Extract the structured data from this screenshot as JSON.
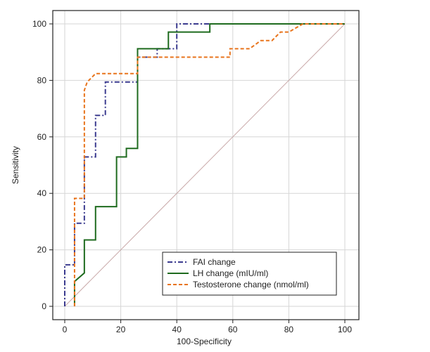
{
  "chart_data": {
    "type": "line",
    "title": "",
    "xlabel": "100-Specificity",
    "ylabel": "Sensitivity",
    "xlim": [
      0,
      100
    ],
    "ylim": [
      0,
      100
    ],
    "xticks": [
      "0",
      "20",
      "40",
      "60",
      "80",
      "100"
    ],
    "yticks": [
      "0",
      "20",
      "40",
      "60",
      "80",
      "100"
    ],
    "grid": true,
    "legend_position": "bottom-right",
    "diagonal_reference": true,
    "series": [
      {
        "name": "FAI change",
        "color": "#3b3b8f",
        "dash": "dash-dot",
        "x": [
          0,
          0,
          3.5,
          3.5,
          7,
          7,
          11,
          11,
          14.5,
          14.5,
          26,
          26,
          33,
          33,
          40,
          40,
          100
        ],
        "y": [
          0,
          14.7,
          14.7,
          29.4,
          29.4,
          52.9,
          52.9,
          67.6,
          67.6,
          79.4,
          79.4,
          88.2,
          88.2,
          91.2,
          91.2,
          100,
          100
        ]
      },
      {
        "name": "LH change (mIU/ml)",
        "color": "#1f6b1f",
        "dash": "solid",
        "x": [
          3.5,
          3.5,
          7,
          7,
          11,
          11,
          18.5,
          18.5,
          22,
          22,
          26,
          26,
          37,
          37,
          51.8,
          51.8,
          100
        ],
        "y": [
          0,
          8.8,
          11.8,
          23.5,
          23.5,
          35.3,
          35.3,
          52.9,
          52.9,
          55.9,
          55.9,
          91.2,
          91.2,
          97.1,
          97.1,
          100,
          100
        ]
      },
      {
        "name": "Testosterone change (nmol/ml)",
        "color": "#e8741c",
        "dash": "dashed",
        "x": [
          3.5,
          3.5,
          7,
          7,
          8,
          11,
          26,
          26,
          59,
          59,
          66,
          70,
          74,
          77,
          80,
          85,
          100
        ],
        "y": [
          0,
          38.2,
          38.2,
          76.5,
          79.4,
          82.4,
          82.4,
          88.2,
          88.2,
          91.2,
          91.2,
          94.1,
          94.1,
          97.1,
          97.1,
          100,
          100
        ]
      }
    ]
  }
}
